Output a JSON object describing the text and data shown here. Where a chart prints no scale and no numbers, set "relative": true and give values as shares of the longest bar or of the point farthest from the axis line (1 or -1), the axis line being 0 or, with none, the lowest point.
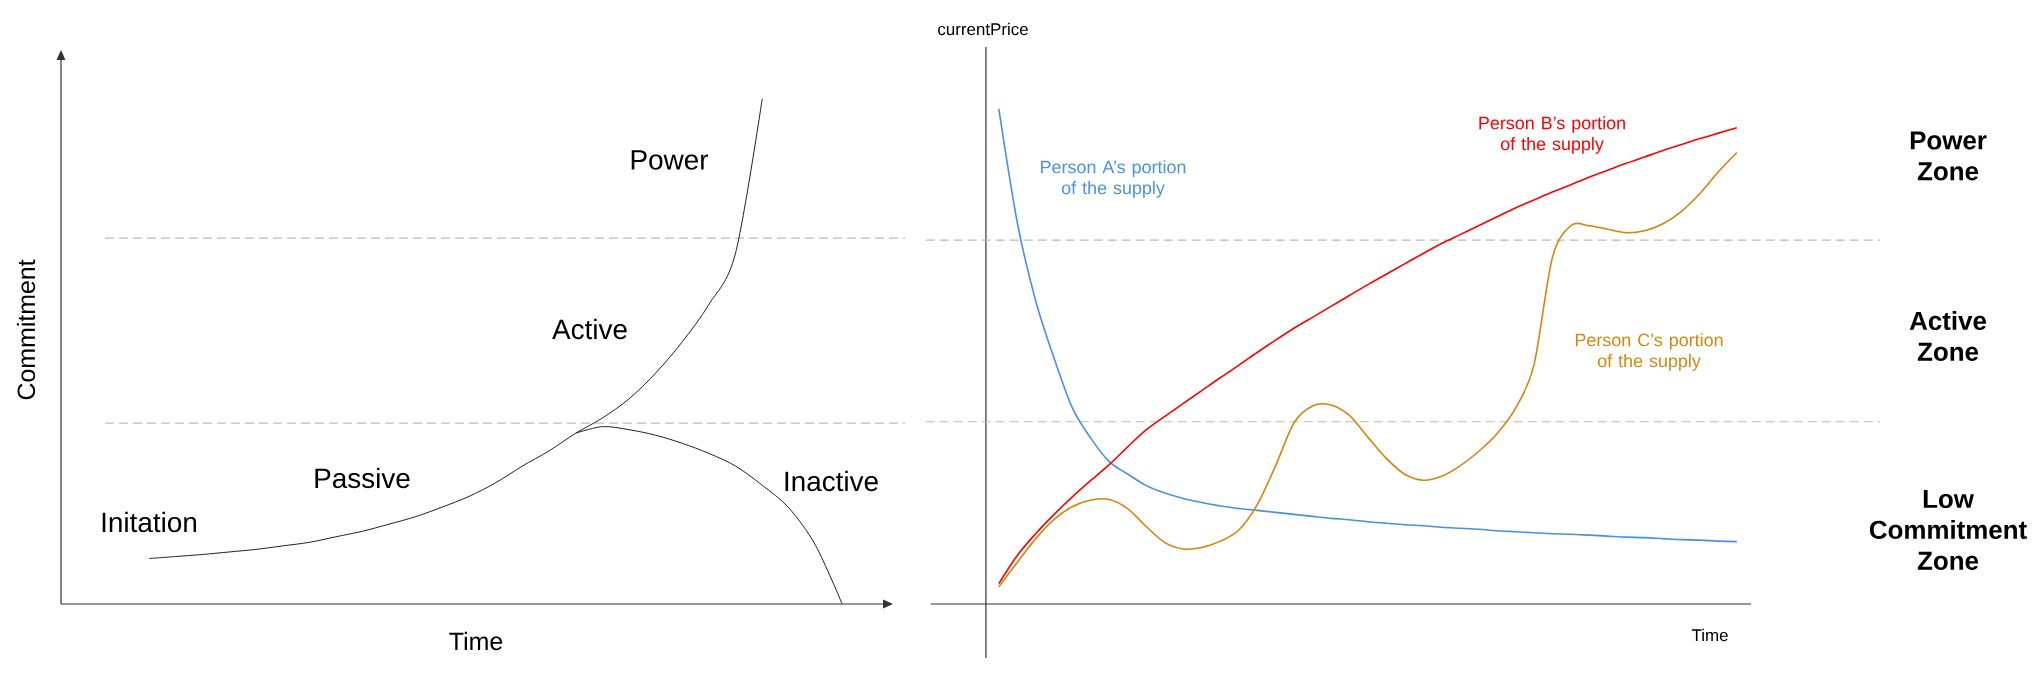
{
  "chart_data": [
    {
      "type": "line",
      "relative": true,
      "xlabel": "Time",
      "ylabel": "Commitment",
      "categories": [
        null,
        null,
        null,
        null,
        null,
        null,
        null,
        null,
        null,
        null,
        null,
        null,
        null,
        null,
        null,
        null,
        null,
        null,
        null,
        null,
        null,
        null,
        null,
        null,
        null,
        null,
        null
      ],
      "series": [
        {
          "color": "#222222",
          "values": [
            0.09,
            0.094,
            0.098,
            0.103,
            0.108,
            0.115,
            0.122,
            0.133,
            0.144,
            0.158,
            0.173,
            0.192,
            0.213,
            0.24,
            0.273,
            0.303,
            0.338,
            0.368,
            0.406,
            0.457,
            0.519,
            0.593,
            0.695,
            1.0,
            null,
            null,
            null
          ]
        },
        {
          "color": "#222222",
          "values": [
            null,
            null,
            null,
            null,
            null,
            null,
            null,
            null,
            null,
            null,
            null,
            null,
            null,
            null,
            null,
            null,
            0.338,
            0.351,
            0.345,
            0.334,
            0.318,
            0.298,
            0.273,
            0.235,
            0.19,
            0.116,
            0.0
          ]
        }
      ],
      "ref_lines": [
        {
          "axis": "y",
          "value": 0.724,
          "color": "#bbbbbb",
          "line_style": "dashed"
        },
        {
          "axis": "y",
          "value": 0.358,
          "color": "#bbbbbb",
          "line_style": "dashed"
        }
      ],
      "annotations": [
        "Initation",
        "Passive",
        "Active",
        "Power",
        "Inactive"
      ]
    },
    {
      "type": "line",
      "relative": true,
      "xlabel": "Time",
      "ylabel": "currentPrice",
      "categories": [
        null,
        null,
        null,
        null,
        null,
        null,
        null,
        null,
        null,
        null,
        null,
        null,
        null,
        null,
        null,
        null,
        null,
        null,
        null,
        null,
        null,
        null,
        null,
        null,
        null,
        null,
        null,
        null,
        null,
        null,
        null,
        null,
        null,
        null,
        null,
        null,
        null,
        null,
        null,
        null,
        null
      ],
      "series": [
        {
          "name": "Person A’s portion of the supply",
          "color": "#4a90e2",
          "values": [
            1.0,
            0.771,
            0.612,
            0.496,
            0.395,
            0.334,
            0.287,
            0.262,
            0.239,
            0.224,
            0.213,
            0.205,
            0.198,
            0.193,
            0.189,
            0.185,
            0.181,
            0.177,
            0.173,
            0.17,
            0.166,
            0.163,
            0.16,
            0.158,
            0.155,
            0.153,
            0.151,
            0.148,
            0.146,
            0.144,
            0.142,
            0.141,
            0.139,
            0.137,
            0.135,
            0.134,
            0.132,
            0.13,
            0.129,
            0.127,
            0.126
          ]
        },
        {
          "name": "Person B’s portion of the supply",
          "color": "#ff0000",
          "values": [
            0.041,
            0.098,
            0.142,
            0.181,
            0.217,
            0.25,
            0.282,
            0.318,
            0.352,
            0.379,
            0.405,
            0.431,
            0.457,
            0.482,
            0.508,
            0.533,
            0.557,
            0.579,
            0.601,
            0.623,
            0.645,
            0.666,
            0.687,
            0.708,
            0.728,
            0.746,
            0.764,
            0.782,
            0.8,
            0.816,
            0.832,
            0.847,
            0.862,
            0.876,
            0.89,
            0.903,
            0.916,
            0.928,
            0.94,
            0.951,
            0.962
          ]
        },
        {
          "name": "Person C’s portion of the supply",
          "color": "#d4860b",
          "values": [
            0.035,
            0.084,
            0.132,
            0.171,
            0.197,
            0.21,
            0.211,
            0.192,
            0.156,
            0.124,
            0.111,
            0.114,
            0.127,
            0.149,
            0.2,
            0.279,
            0.366,
            0.4,
            0.402,
            0.381,
            0.337,
            0.294,
            0.262,
            0.25,
            0.258,
            0.279,
            0.308,
            0.344,
            0.395,
            0.482,
            0.699,
            0.764,
            0.764,
            0.757,
            0.75,
            0.754,
            0.768,
            0.793,
            0.829,
            0.873,
            0.912
          ]
        }
      ],
      "ref_lines": [
        {
          "axis": "y",
          "value": 0.735,
          "color": "#bbbbbb",
          "line_style": "dashed"
        },
        {
          "axis": "y",
          "value": 0.368,
          "color": "#bbbbbb",
          "line_style": "dashed"
        }
      ],
      "annotations": [
        "Power Zone",
        "Active Zone",
        "Low Commitment Zone"
      ]
    }
  ]
}
